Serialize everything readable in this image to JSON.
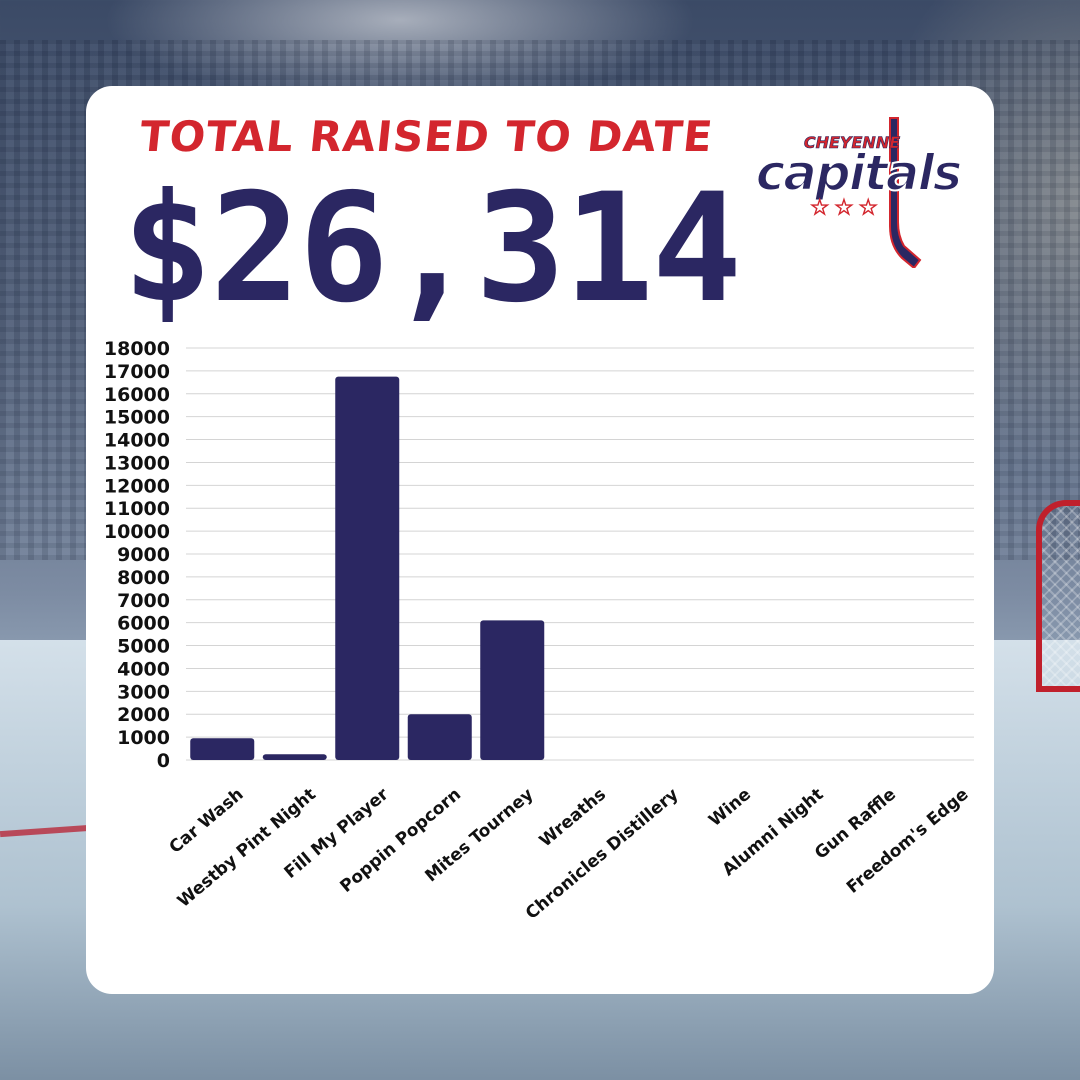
{
  "header": {
    "title": "TOTAL RAISED TO DATE",
    "total": "$26,314"
  },
  "logo": {
    "top_text": "CHEYENNE",
    "main_text": "capitals",
    "stars": "★ ★ ★"
  },
  "colors": {
    "bar": "#2b2762",
    "title": "#d3262e",
    "grid": "#d4d4d4",
    "label": "#111111"
  },
  "chart_data": {
    "type": "bar",
    "categories": [
      "Car Wash",
      "Westby Pint Night",
      "Fill My Player",
      "Poppin Popcorn",
      "Mites Tourney",
      "Wreaths",
      "Chronicles Distillery",
      "Wine",
      "Alumni Night",
      "Gun Raffle",
      "Freedom's Edge"
    ],
    "values": [
      950,
      250,
      16750,
      2000,
      6100,
      0,
      0,
      0,
      0,
      0,
      0
    ],
    "ylim": [
      0,
      18000
    ],
    "yticks": [
      0,
      1000,
      2000,
      3000,
      4000,
      5000,
      6000,
      7000,
      8000,
      9000,
      10000,
      11000,
      12000,
      13000,
      14000,
      15000,
      16000,
      17000,
      18000
    ],
    "grid": true,
    "legend": "none"
  }
}
